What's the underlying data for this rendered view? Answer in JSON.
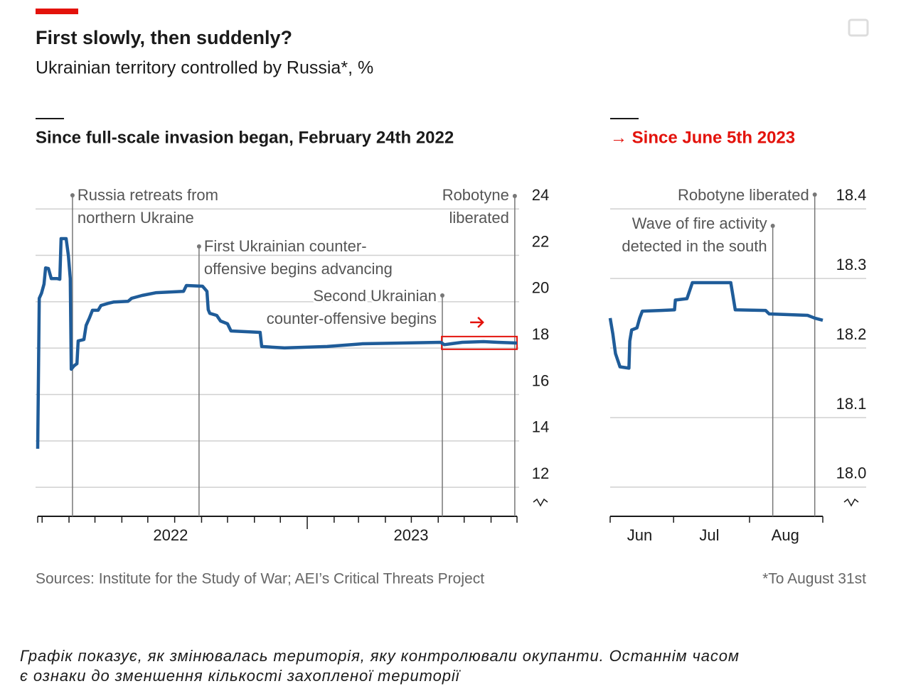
{
  "header": {
    "title": "First slowly, then suddenly?",
    "subtitle": "Ukrainian territory controlled by Russia*, %"
  },
  "chart_data": [
    {
      "type": "line",
      "title": "Since full-scale invasion began, February 24th 2022",
      "color": "#1f5c99",
      "x": [
        2022.148,
        2022.153,
        2022.16,
        2022.168,
        2022.173,
        2022.182,
        2022.191,
        2022.209,
        2022.218,
        2022.222,
        2022.238,
        2022.245,
        2022.251,
        2022.254,
        2022.263,
        2022.272,
        2022.276,
        2022.294,
        2022.301,
        2022.312,
        2022.321,
        2022.339,
        2022.348,
        2022.371,
        2022.389,
        2022.434,
        2022.445,
        2022.478,
        2022.523,
        2022.609,
        2022.618,
        2022.669,
        2022.683,
        2022.687,
        2022.692,
        2022.714,
        2022.726,
        2022.748,
        2022.759,
        2022.851,
        2022.856,
        2022.928,
        2023.063,
        2023.175,
        2023.422,
        2023.433,
        2023.49,
        2023.557,
        2023.602,
        2023.663
      ],
      "values": [
        13.66,
        20.15,
        20.36,
        20.76,
        21.46,
        21.43,
        21.0,
        21.0,
        20.97,
        22.72,
        22.72,
        21.98,
        21.0,
        17.09,
        17.24,
        17.33,
        18.31,
        18.37,
        18.98,
        19.32,
        19.63,
        19.63,
        19.84,
        19.93,
        19.99,
        20.02,
        20.15,
        20.27,
        20.39,
        20.45,
        20.7,
        20.67,
        20.45,
        19.66,
        19.5,
        19.41,
        19.17,
        19.05,
        18.74,
        18.68,
        18.07,
        18.01,
        18.07,
        18.19,
        18.25,
        18.15,
        18.25,
        18.28,
        18.25,
        18.22
      ],
      "xlim": [
        2022.148,
        2023.663
      ],
      "xticks": [
        {
          "value": 2022.568,
          "label": "2022"
        },
        {
          "value": 2023.328,
          "label": "2023"
        }
      ],
      "xminorticks": [
        2022.162,
        2022.247,
        2022.329,
        2022.414,
        2022.496,
        2022.581,
        2022.666,
        2022.748,
        2022.833,
        2022.915,
        2023,
        2023.085,
        2023.162,
        2023.247,
        2023.329,
        2023.414,
        2023.496,
        2023.581
      ],
      "ylim": [
        10.75,
        25.2
      ],
      "yticks": [
        12,
        14,
        16,
        18,
        20,
        22,
        24
      ],
      "grid": true,
      "annotations": [
        {
          "text": [
            "Russia retreats from",
            "northern Ukraine"
          ],
          "x": 2022.258
        },
        {
          "text": [
            "First Ukrainian counter-",
            "offensive begins advancing"
          ],
          "x": 2022.658
        },
        {
          "text": [
            "Second Ukrainian",
            "counter-offensive begins"
          ],
          "x": 2023.427
        },
        {
          "text": [
            "Robotyne",
            "liberated"
          ],
          "x": 2023.656
        }
      ],
      "highlight": {
        "x": [
          2023.425,
          2023.663
        ],
        "y": [
          17.95,
          18.5
        ],
        "color": "#e3120b"
      }
    },
    {
      "type": "line",
      "title": "→ Since June 5th 2023",
      "title_color": "#e3120b",
      "color": "#1f5c99",
      "x": [
        2023.425,
        2023.428,
        2023.431,
        2023.436,
        2023.446,
        2023.447,
        2023.449,
        2023.455,
        2023.458,
        2023.461,
        2023.482,
        2023.497,
        2023.498,
        2023.511,
        2023.517,
        2023.56,
        2023.565,
        2023.599,
        2023.603,
        2023.646,
        2023.654,
        2023.663
      ],
      "values": [
        18.243,
        18.22,
        18.192,
        18.173,
        18.171,
        18.21,
        18.226,
        18.229,
        18.243,
        18.253,
        18.254,
        18.255,
        18.269,
        18.271,
        18.294,
        18.294,
        18.255,
        18.254,
        18.249,
        18.247,
        18.243,
        18.24
      ],
      "xlim": [
        2023.425,
        2023.663
      ],
      "xticks": [
        {
          "value": 2023.458,
          "label": "Jun"
        },
        {
          "value": 2023.536,
          "label": "Jul"
        },
        {
          "value": 2023.621,
          "label": "Aug"
        }
      ],
      "xminorticks": [
        2023.496,
        2023.581
      ],
      "ylim": [
        17.958,
        18.44
      ],
      "yticks": [
        {
          "value": 18,
          "label": "18.0"
        },
        18.1,
        18.2,
        18.3,
        18.4
      ],
      "grid": true,
      "annotations": [
        {
          "text": [
            "Wave of fire activity",
            "detected in the south"
          ],
          "x": 2023.607
        },
        {
          "text": [
            "Robotyne liberated"
          ],
          "x": 2023.654
        }
      ]
    }
  ],
  "source": "Sources: Institute for the Study of War; AEI’s Critical Threats Project",
  "note": "*To August 31st",
  "caption": [
    "Графік показує, як змінювалась територія, яку контролювали окупанти. Останнім часом",
    "є ознаки до зменшення кількості захопленої території"
  ]
}
